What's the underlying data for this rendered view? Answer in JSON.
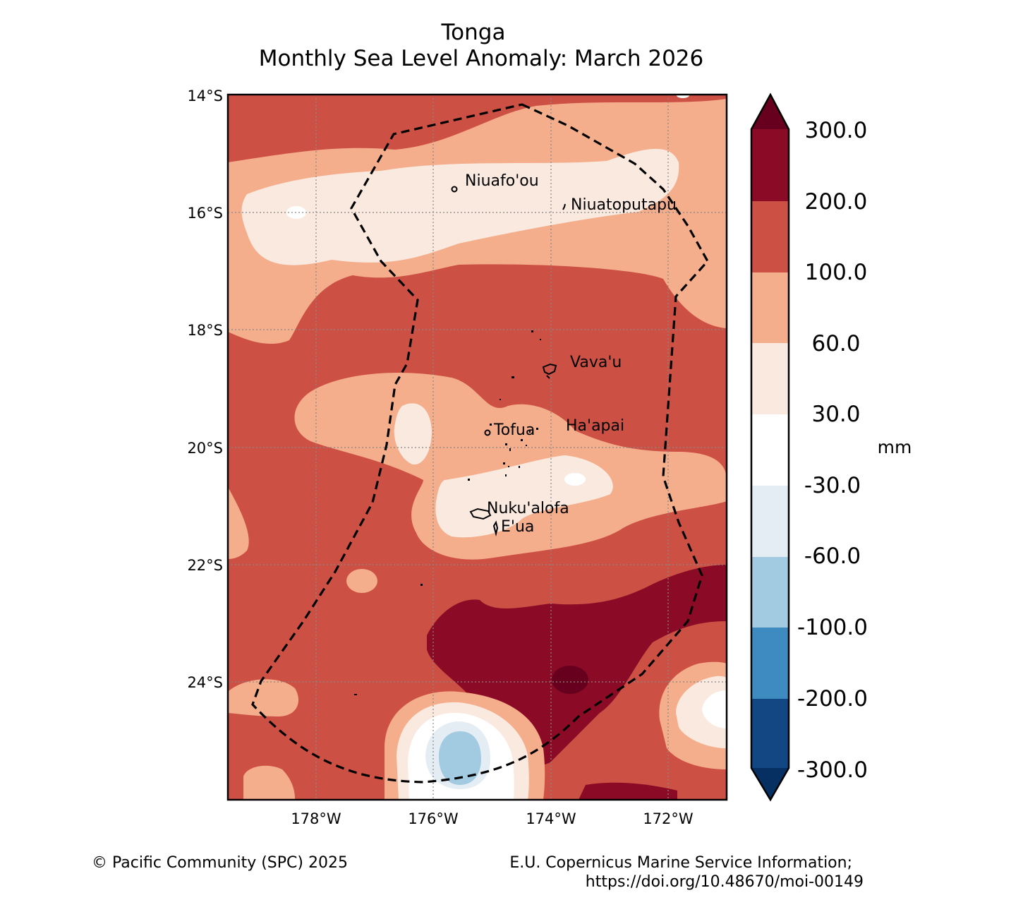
{
  "title": {
    "line1": "Tonga",
    "line2": "Monthly Sea Level Anomaly: March 2026"
  },
  "axes": {
    "lat_ticks": [
      "14°S",
      "16°S",
      "18°S",
      "20°S",
      "22°S",
      "24°S"
    ],
    "lon_ticks": [
      "178°W",
      "176°W",
      "174°W",
      "172°W"
    ]
  },
  "places": [
    {
      "name": "Niuafo'ou"
    },
    {
      "name": "Niuatoputapu"
    },
    {
      "name": "Vava'u"
    },
    {
      "name": "Ha'apai"
    },
    {
      "name": "Tofua"
    },
    {
      "name": "Nuku'alofa"
    },
    {
      "name": "E'ua"
    }
  ],
  "colorbar": {
    "unit": "mm",
    "levels": [
      "300.0",
      "200.0",
      "100.0",
      "60.0",
      "30.0",
      "-30.0",
      "-60.0",
      "-100.0",
      "-200.0",
      "-300.0"
    ],
    "colors": [
      "#67001f",
      "#8b0a26",
      "#cd5044",
      "#f4ae8c",
      "#fae9df",
      "#ffffff",
      "#e4edf4",
      "#a2cbe2",
      "#3d8bc1",
      "#124784",
      "#053061"
    ]
  },
  "footer": {
    "copyright": "© Pacific Community (SPC) 2025",
    "credit_line1": "E.U. Copernicus Marine Service Information;",
    "credit_line2": "https://doi.org/10.48670/moi-00149"
  }
}
